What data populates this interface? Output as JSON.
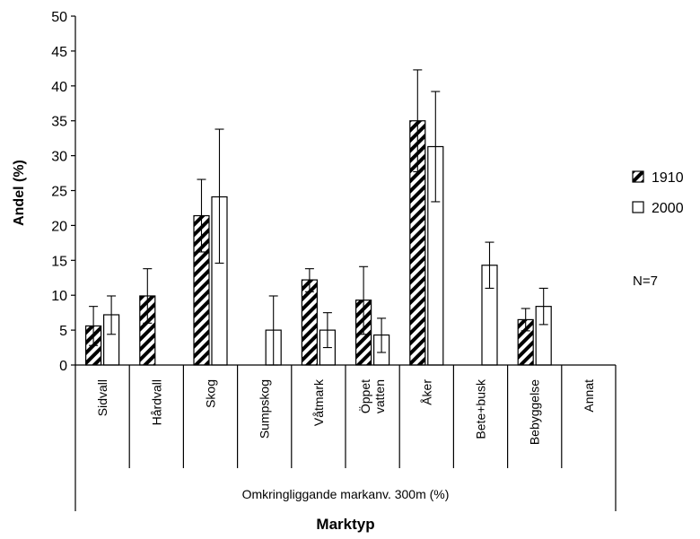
{
  "chart_data": {
    "type": "bar",
    "categories": [
      "Sidvall",
      "Hårdvall",
      "Skog",
      "Sumpskog",
      "Våtmark",
      "Öppet vatten",
      "Åker",
      "Bete+busk",
      "Bebyggelse",
      "Annat"
    ],
    "series": [
      {
        "name": "1910",
        "values": [
          5.6,
          9.9,
          21.4,
          null,
          12.2,
          9.3,
          35.0,
          null,
          6.5,
          null
        ],
        "error_low": [
          2.8,
          6.0,
          16.2,
          null,
          10.5,
          4.4,
          27.7,
          null,
          4.9,
          null
        ],
        "error_high": [
          8.4,
          13.8,
          26.6,
          null,
          13.8,
          14.1,
          42.3,
          null,
          8.1,
          null
        ],
        "pattern": "hatched"
      },
      {
        "name": "2000",
        "values": [
          7.2,
          null,
          24.1,
          5.0,
          5.0,
          4.3,
          31.3,
          14.3,
          8.4,
          null
        ],
        "error_low": [
          4.4,
          null,
          14.6,
          0,
          2.5,
          1.8,
          23.4,
          11.0,
          5.8,
          null
        ],
        "error_high": [
          9.9,
          null,
          33.8,
          9.9,
          7.5,
          6.7,
          39.2,
          17.6,
          11.0,
          null
        ],
        "pattern": "white"
      }
    ],
    "ylabel": "Andel (%)",
    "xlabel": "Marktyp",
    "group_label": "Omkringliggande markanv. 300m (%)",
    "annotation": "N=7",
    "ylim": [
      0,
      50
    ],
    "yticks": [
      0,
      5,
      10,
      15,
      20,
      25,
      30,
      35,
      40,
      45,
      50
    ],
    "grid": false,
    "legend_position": "right"
  }
}
